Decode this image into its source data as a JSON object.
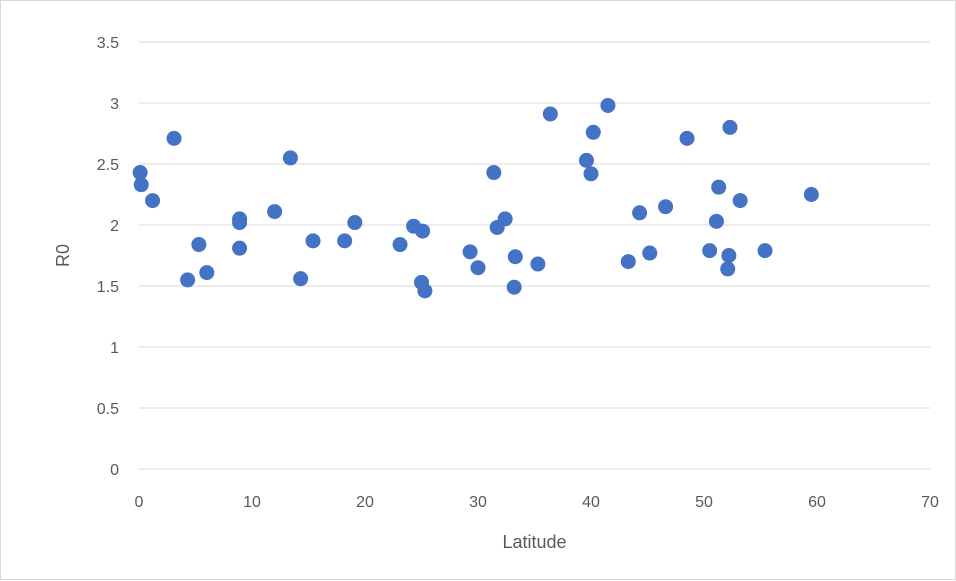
{
  "chart_data": {
    "type": "scatter",
    "title": "",
    "xlabel": "Latitude",
    "ylabel": "R0",
    "xlim": [
      0,
      70
    ],
    "ylim": [
      0,
      3.5
    ],
    "x_ticks": [
      0,
      10,
      20,
      30,
      40,
      50,
      60,
      70
    ],
    "y_ticks": [
      0,
      0.5,
      1,
      1.5,
      2,
      2.5,
      3,
      3.5
    ],
    "x_tick_labels": [
      "0",
      "10",
      "20",
      "30",
      "40",
      "50",
      "60",
      "70"
    ],
    "y_tick_labels": [
      "0",
      "0.5",
      "1",
      "1.5",
      "2",
      "2.5",
      "3",
      "3.5"
    ],
    "grid": "horizontal",
    "legend": "none",
    "marker_color": "#4472C4",
    "gridline_color": "#d9d9d9",
    "series": [
      {
        "points": [
          [
            0.1,
            2.43
          ],
          [
            0.2,
            2.33
          ],
          [
            1.2,
            2.2
          ],
          [
            3.1,
            2.71
          ],
          [
            4.3,
            1.55
          ],
          [
            5.3,
            1.84
          ],
          [
            6.0,
            1.61
          ],
          [
            8.9,
            2.05
          ],
          [
            8.9,
            2.02
          ],
          [
            8.9,
            1.81
          ],
          [
            12.0,
            2.11
          ],
          [
            13.4,
            2.55
          ],
          [
            14.3,
            1.56
          ],
          [
            15.4,
            1.87
          ],
          [
            18.2,
            1.87
          ],
          [
            19.1,
            2.02
          ],
          [
            23.1,
            1.84
          ],
          [
            24.3,
            1.99
          ],
          [
            25.1,
            1.95
          ],
          [
            25.0,
            1.53
          ],
          [
            25.3,
            1.46
          ],
          [
            29.3,
            1.78
          ],
          [
            30.0,
            1.65
          ],
          [
            31.4,
            2.43
          ],
          [
            31.7,
            1.98
          ],
          [
            32.4,
            2.05
          ],
          [
            33.3,
            1.74
          ],
          [
            33.2,
            1.49
          ],
          [
            35.3,
            1.68
          ],
          [
            36.4,
            2.91
          ],
          [
            39.6,
            2.53
          ],
          [
            40.2,
            2.76
          ],
          [
            40.0,
            2.42
          ],
          [
            41.5,
            2.98
          ],
          [
            43.3,
            1.7
          ],
          [
            44.3,
            2.1
          ],
          [
            45.2,
            1.77
          ],
          [
            46.6,
            2.15
          ],
          [
            48.5,
            2.71
          ],
          [
            50.5,
            1.79
          ],
          [
            51.3,
            2.31
          ],
          [
            51.1,
            2.03
          ],
          [
            52.3,
            2.8
          ],
          [
            52.2,
            1.75
          ],
          [
            52.1,
            1.64
          ],
          [
            53.2,
            2.2
          ],
          [
            55.4,
            1.79
          ],
          [
            59.5,
            2.25
          ]
        ]
      }
    ]
  }
}
